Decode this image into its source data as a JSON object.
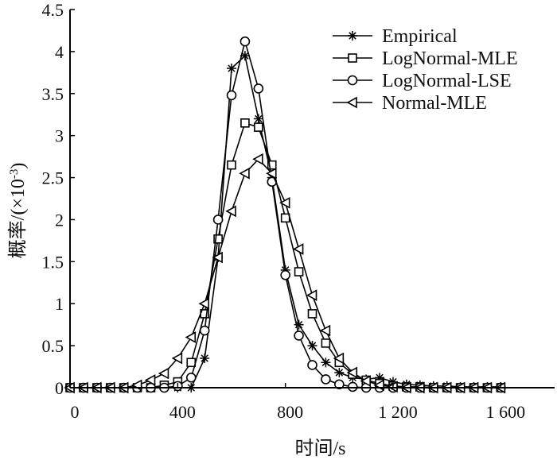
{
  "chart_data": {
    "type": "line",
    "title": "",
    "xlabel": "时间/s",
    "ylabel": "概率/(×10",
    "ylabel_exp": "-3",
    "ylabel_close": ")",
    "xlim": [
      0,
      1800
    ],
    "ylim": [
      0,
      4.5
    ],
    "xticks": [
      0,
      400,
      800,
      1200,
      1600
    ],
    "xtick_labels": [
      "0",
      "400",
      "800",
      "1 200",
      "1 600"
    ],
    "yticks": [
      0,
      0.5,
      1,
      1.5,
      2,
      2.5,
      3,
      3.5,
      4,
      4.5
    ],
    "ytick_labels": [
      "0",
      "0.5",
      "1",
      "1.5",
      "2",
      "2.5",
      "3",
      "3.5",
      "4",
      "4.5"
    ],
    "grid": false,
    "legend_position": "top-right",
    "series": [
      {
        "name": "Empirical",
        "marker": "asterisk",
        "x": [
          0,
          50,
          100,
          150,
          200,
          250,
          300,
          350,
          400,
          450,
          500,
          550,
          600,
          650,
          700,
          750,
          800,
          850,
          900,
          950,
          1000,
          1050,
          1100,
          1150,
          1200,
          1250,
          1300,
          1350,
          1400,
          1450,
          1500,
          1550,
          1600
        ],
        "y": [
          0,
          0,
          0,
          0,
          0,
          0,
          0,
          0,
          0,
          0,
          0.35,
          1.55,
          3.8,
          3.95,
          3.2,
          2.5,
          1.4,
          0.75,
          0.5,
          0.3,
          0.18,
          0.12,
          0.1,
          0.12,
          0.07,
          0.04,
          0.03,
          0.02,
          0.02,
          0.01,
          0.01,
          0.01,
          0.01
        ]
      },
      {
        "name": "LogNormal-MLE",
        "marker": "square",
        "x": [
          0,
          50,
          100,
          150,
          200,
          250,
          300,
          350,
          400,
          450,
          500,
          550,
          600,
          650,
          700,
          750,
          800,
          850,
          900,
          950,
          1000,
          1050,
          1100,
          1150,
          1200,
          1250,
          1300,
          1350,
          1400,
          1450,
          1500,
          1550,
          1600
        ],
        "y": [
          0,
          0,
          0,
          0,
          0,
          0,
          0,
          0.03,
          0.07,
          0.3,
          0.88,
          1.77,
          2.65,
          3.15,
          3.1,
          2.65,
          2.02,
          1.38,
          0.88,
          0.53,
          0.3,
          0.16,
          0.09,
          0.05,
          0.02,
          0.01,
          0.01,
          0,
          0,
          0,
          0,
          0,
          0
        ]
      },
      {
        "name": "LogNormal-LSE",
        "marker": "circle",
        "x": [
          0,
          50,
          100,
          150,
          200,
          250,
          300,
          350,
          400,
          450,
          500,
          550,
          600,
          650,
          700,
          750,
          800,
          850,
          900,
          950,
          1000,
          1050,
          1100,
          1150,
          1200,
          1250,
          1300,
          1350,
          1400,
          1450,
          1500,
          1550,
          1600
        ],
        "y": [
          0,
          0,
          0,
          0,
          0,
          0,
          0,
          0,
          0.02,
          0.12,
          0.68,
          2.0,
          3.48,
          4.12,
          3.56,
          2.45,
          1.34,
          0.62,
          0.27,
          0.1,
          0.04,
          0.01,
          0,
          0,
          0,
          0,
          0,
          0,
          0,
          0,
          0,
          0,
          0
        ]
      },
      {
        "name": "Normal-MLE",
        "marker": "triangle-left",
        "x": [
          0,
          50,
          100,
          150,
          200,
          250,
          300,
          350,
          400,
          450,
          500,
          550,
          600,
          650,
          700,
          750,
          800,
          850,
          900,
          950,
          1000,
          1050,
          1100,
          1150,
          1200,
          1250,
          1300,
          1350,
          1400,
          1450,
          1500,
          1550,
          1600
        ],
        "y": [
          0,
          0,
          0,
          0,
          0,
          0.03,
          0.09,
          0.17,
          0.35,
          0.6,
          1.0,
          1.55,
          2.1,
          2.55,
          2.72,
          2.55,
          2.2,
          1.65,
          1.1,
          0.68,
          0.35,
          0.18,
          0.08,
          0.03,
          0.01,
          0,
          0,
          0,
          0,
          0,
          0,
          0,
          0
        ]
      }
    ]
  }
}
